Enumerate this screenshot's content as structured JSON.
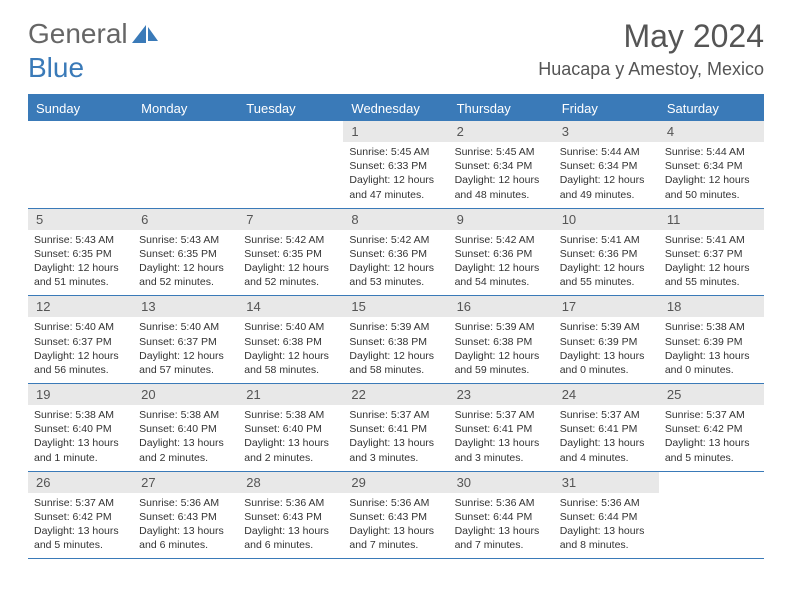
{
  "logo": {
    "text1": "General",
    "text2": "Blue"
  },
  "title": "May 2024",
  "location": "Huacapa y Amestoy, Mexico",
  "colors": {
    "header_bg": "#3a7ab8",
    "day_num_bg": "#e8e8e8",
    "text": "#333333",
    "title_text": "#555555"
  },
  "weekdays": [
    "Sunday",
    "Monday",
    "Tuesday",
    "Wednesday",
    "Thursday",
    "Friday",
    "Saturday"
  ],
  "weeks": [
    [
      null,
      null,
      null,
      {
        "n": "1",
        "sr": "5:45 AM",
        "ss": "6:33 PM",
        "dl": "12 hours and 47 minutes."
      },
      {
        "n": "2",
        "sr": "5:45 AM",
        "ss": "6:34 PM",
        "dl": "12 hours and 48 minutes."
      },
      {
        "n": "3",
        "sr": "5:44 AM",
        "ss": "6:34 PM",
        "dl": "12 hours and 49 minutes."
      },
      {
        "n": "4",
        "sr": "5:44 AM",
        "ss": "6:34 PM",
        "dl": "12 hours and 50 minutes."
      }
    ],
    [
      {
        "n": "5",
        "sr": "5:43 AM",
        "ss": "6:35 PM",
        "dl": "12 hours and 51 minutes."
      },
      {
        "n": "6",
        "sr": "5:43 AM",
        "ss": "6:35 PM",
        "dl": "12 hours and 52 minutes."
      },
      {
        "n": "7",
        "sr": "5:42 AM",
        "ss": "6:35 PM",
        "dl": "12 hours and 52 minutes."
      },
      {
        "n": "8",
        "sr": "5:42 AM",
        "ss": "6:36 PM",
        "dl": "12 hours and 53 minutes."
      },
      {
        "n": "9",
        "sr": "5:42 AM",
        "ss": "6:36 PM",
        "dl": "12 hours and 54 minutes."
      },
      {
        "n": "10",
        "sr": "5:41 AM",
        "ss": "6:36 PM",
        "dl": "12 hours and 55 minutes."
      },
      {
        "n": "11",
        "sr": "5:41 AM",
        "ss": "6:37 PM",
        "dl": "12 hours and 55 minutes."
      }
    ],
    [
      {
        "n": "12",
        "sr": "5:40 AM",
        "ss": "6:37 PM",
        "dl": "12 hours and 56 minutes."
      },
      {
        "n": "13",
        "sr": "5:40 AM",
        "ss": "6:37 PM",
        "dl": "12 hours and 57 minutes."
      },
      {
        "n": "14",
        "sr": "5:40 AM",
        "ss": "6:38 PM",
        "dl": "12 hours and 58 minutes."
      },
      {
        "n": "15",
        "sr": "5:39 AM",
        "ss": "6:38 PM",
        "dl": "12 hours and 58 minutes."
      },
      {
        "n": "16",
        "sr": "5:39 AM",
        "ss": "6:38 PM",
        "dl": "12 hours and 59 minutes."
      },
      {
        "n": "17",
        "sr": "5:39 AM",
        "ss": "6:39 PM",
        "dl": "13 hours and 0 minutes."
      },
      {
        "n": "18",
        "sr": "5:38 AM",
        "ss": "6:39 PM",
        "dl": "13 hours and 0 minutes."
      }
    ],
    [
      {
        "n": "19",
        "sr": "5:38 AM",
        "ss": "6:40 PM",
        "dl": "13 hours and 1 minute."
      },
      {
        "n": "20",
        "sr": "5:38 AM",
        "ss": "6:40 PM",
        "dl": "13 hours and 2 minutes."
      },
      {
        "n": "21",
        "sr": "5:38 AM",
        "ss": "6:40 PM",
        "dl": "13 hours and 2 minutes."
      },
      {
        "n": "22",
        "sr": "5:37 AM",
        "ss": "6:41 PM",
        "dl": "13 hours and 3 minutes."
      },
      {
        "n": "23",
        "sr": "5:37 AM",
        "ss": "6:41 PM",
        "dl": "13 hours and 3 minutes."
      },
      {
        "n": "24",
        "sr": "5:37 AM",
        "ss": "6:41 PM",
        "dl": "13 hours and 4 minutes."
      },
      {
        "n": "25",
        "sr": "5:37 AM",
        "ss": "6:42 PM",
        "dl": "13 hours and 5 minutes."
      }
    ],
    [
      {
        "n": "26",
        "sr": "5:37 AM",
        "ss": "6:42 PM",
        "dl": "13 hours and 5 minutes."
      },
      {
        "n": "27",
        "sr": "5:36 AM",
        "ss": "6:43 PM",
        "dl": "13 hours and 6 minutes."
      },
      {
        "n": "28",
        "sr": "5:36 AM",
        "ss": "6:43 PM",
        "dl": "13 hours and 6 minutes."
      },
      {
        "n": "29",
        "sr": "5:36 AM",
        "ss": "6:43 PM",
        "dl": "13 hours and 7 minutes."
      },
      {
        "n": "30",
        "sr": "5:36 AM",
        "ss": "6:44 PM",
        "dl": "13 hours and 7 minutes."
      },
      {
        "n": "31",
        "sr": "5:36 AM",
        "ss": "6:44 PM",
        "dl": "13 hours and 8 minutes."
      },
      null
    ]
  ],
  "labels": {
    "sunrise": "Sunrise:",
    "sunset": "Sunset:",
    "daylight": "Daylight:"
  }
}
